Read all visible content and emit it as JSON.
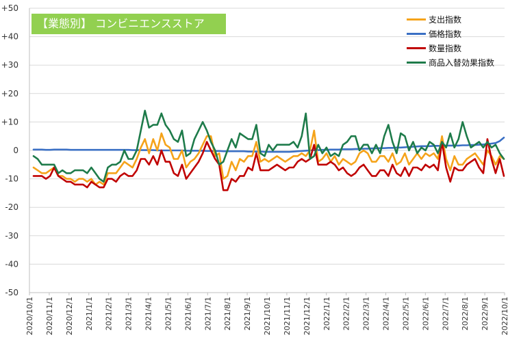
{
  "chart_data": {
    "type": "line",
    "title": "【業態別】 コンビニエンスストア",
    "xlabel": "",
    "ylabel": "",
    "ylim": [
      -50,
      50
    ],
    "yticks": [
      -50,
      -40,
      -30,
      -20,
      -10,
      0,
      10,
      20,
      30,
      40,
      50
    ],
    "ytick_labels": [
      "-50",
      "-40",
      "-30",
      "-20",
      "-10",
      "0",
      "+10",
      "+20",
      "+30",
      "+40",
      "+50"
    ],
    "x_tick_labels": [
      "2020/10/1",
      "2020/11/1",
      "2020/12/1",
      "2021/1/1",
      "2021/2/1",
      "2021/3/1",
      "2021/4/1",
      "2021/5/1",
      "2021/6/1",
      "2021/7/1",
      "2021/8/1",
      "2021/9/1",
      "2021/10/1",
      "2021/11/1",
      "2021/12/1",
      "2022/1/1",
      "2022/2/1",
      "2022/3/1",
      "2022/4/1",
      "2022/5/1",
      "2022/6/1",
      "2022/7/1",
      "2022/8/1",
      "2022/9/1",
      "2022/10/1"
    ],
    "grid": true,
    "legend_position": "top-right",
    "series": [
      {
        "name": "支出指数",
        "color": "#f5a31a",
        "values": [
          -6,
          -7,
          -8,
          -8,
          -7,
          -6,
          -9,
          -9,
          -10,
          -10,
          -11,
          -10,
          -10,
          -11,
          -10,
          -12,
          -11,
          -12,
          -8,
          -8,
          -8,
          -6,
          -4,
          -5,
          -6,
          -3,
          1,
          4,
          -1,
          4,
          0,
          6,
          2,
          1,
          -3,
          -3,
          0,
          -6,
          -4,
          -3,
          -1,
          2,
          5,
          5,
          -2,
          -1,
          -10,
          -9,
          -4,
          -7,
          -3,
          -4,
          -2,
          -2,
          3,
          -4,
          -3,
          -4,
          -3,
          -2,
          -3,
          -4,
          -3,
          -2,
          -2,
          -1,
          -2,
          0,
          7,
          -4,
          -3,
          -1,
          -4,
          -2,
          -5,
          -3,
          -4,
          -5,
          -4,
          -1,
          0,
          -1,
          -4,
          -4,
          -2,
          -2,
          -4,
          -1,
          -5,
          -4,
          -1,
          -5,
          -3,
          -1,
          -3,
          -1,
          -2,
          -1,
          -3,
          5,
          -3,
          -7,
          -2,
          -5,
          -5,
          -3,
          -2,
          -1,
          -3,
          -5,
          0,
          -2,
          -5,
          -2,
          -3
        ]
      },
      {
        "name": "価格指数",
        "color": "#3a6fc4",
        "values": [
          0.3,
          0.3,
          0.3,
          0.2,
          0.2,
          0.3,
          0.3,
          0.3,
          0.3,
          0.2,
          0.2,
          0.2,
          0.2,
          0.2,
          0.2,
          0.2,
          0.2,
          0.2,
          0.2,
          0.2,
          0.2,
          0.2,
          0.2,
          0.2,
          0.1,
          0.1,
          0.1,
          0.1,
          0.1,
          0.1,
          0,
          0,
          0,
          0,
          0,
          0,
          0,
          -0.1,
          -0.1,
          -0.1,
          -0.1,
          -0.1,
          -0.2,
          -0.2,
          -0.2,
          -0.2,
          -0.3,
          -0.3,
          -0.3,
          -0.3,
          -0.3,
          -0.3,
          -0.4,
          -0.4,
          -0.4,
          -0.4,
          -0.5,
          -0.5,
          -0.5,
          -0.5,
          -0.5,
          -0.5,
          -0.5,
          -0.4,
          -0.3,
          -0.2,
          -0.1,
          0,
          0.1,
          0.1,
          0.2,
          0.2,
          0.3,
          0.3,
          0.3,
          0.4,
          0.4,
          0.4,
          0.5,
          0.5,
          0.6,
          0.6,
          0.7,
          0.7,
          0.8,
          0.8,
          0.9,
          0.9,
          1,
          1,
          1.1,
          1.2,
          1.3,
          1.4,
          1.5,
          1.5,
          1.5,
          1.6,
          1.6,
          1.6,
          1.7,
          1.7,
          1.7,
          1.7,
          1.8,
          1.8,
          1.9,
          1.9,
          2,
          2.1,
          2.2,
          2.4,
          2.6,
          3.3,
          4.5
        ]
      },
      {
        "name": "数量指数",
        "color": "#c00000",
        "values": [
          -9,
          -9,
          -9,
          -10,
          -9,
          -6,
          -9,
          -10,
          -11,
          -11,
          -12,
          -12,
          -12,
          -13,
          -11,
          -12,
          -13,
          -13,
          -10,
          -10,
          -11,
          -9,
          -8,
          -9,
          -9,
          -7,
          -3,
          -3,
          -5,
          -2,
          -5,
          0,
          -4,
          -4,
          -8,
          -9,
          -5,
          -10,
          -8,
          -6,
          -4,
          -1,
          3,
          0,
          -3,
          -5,
          -14,
          -14,
          -10,
          -11,
          -9,
          -9,
          -6,
          -7,
          -1,
          -7,
          -7,
          -7,
          -6,
          -5,
          -6,
          -7,
          -6,
          -6,
          -4,
          -3,
          -4,
          -3,
          2,
          -5,
          -5,
          -5,
          -4,
          -5,
          -7,
          -6,
          -8,
          -9,
          -8,
          -6,
          -5,
          -7,
          -9,
          -9,
          -7,
          -7,
          -9,
          -5,
          -8,
          -9,
          -6,
          -9,
          -6,
          -6,
          -7,
          -5,
          -6,
          -5,
          -7,
          3,
          -6,
          -11,
          -6,
          -7,
          -7,
          -5,
          -4,
          -3,
          -6,
          -8,
          4,
          -3,
          -8,
          -3,
          -9
        ]
      },
      {
        "name": "商品入替効果指数",
        "color": "#1e7b4a",
        "values": [
          -2,
          -3,
          -5,
          -5,
          -5,
          -5,
          -8,
          -7,
          -8,
          -8,
          -7,
          -7,
          -7,
          -8,
          -6,
          -8,
          -10,
          -11,
          -6,
          -5,
          -5,
          -4,
          0,
          -3,
          -3,
          0,
          7,
          14,
          8,
          9,
          9,
          13,
          9,
          7,
          4,
          3,
          7,
          -2,
          -1,
          4,
          7,
          10,
          7,
          3,
          0,
          -5,
          -4,
          0,
          4,
          1,
          6,
          5,
          4,
          4,
          9,
          -1,
          -2,
          2,
          0,
          2,
          2,
          2,
          2,
          3,
          1,
          5,
          13,
          -3,
          -2,
          2,
          -1,
          1,
          -2,
          -1,
          -2,
          2,
          3,
          5,
          5,
          0,
          2,
          2,
          -1,
          2,
          -1,
          5,
          9,
          3,
          -1,
          6,
          5,
          0,
          3,
          -1,
          1,
          0,
          3,
          2,
          -1,
          3,
          1,
          6,
          1,
          4,
          10,
          5,
          1,
          2,
          3,
          1,
          3,
          1,
          2,
          -1,
          -3
        ]
      }
    ]
  }
}
